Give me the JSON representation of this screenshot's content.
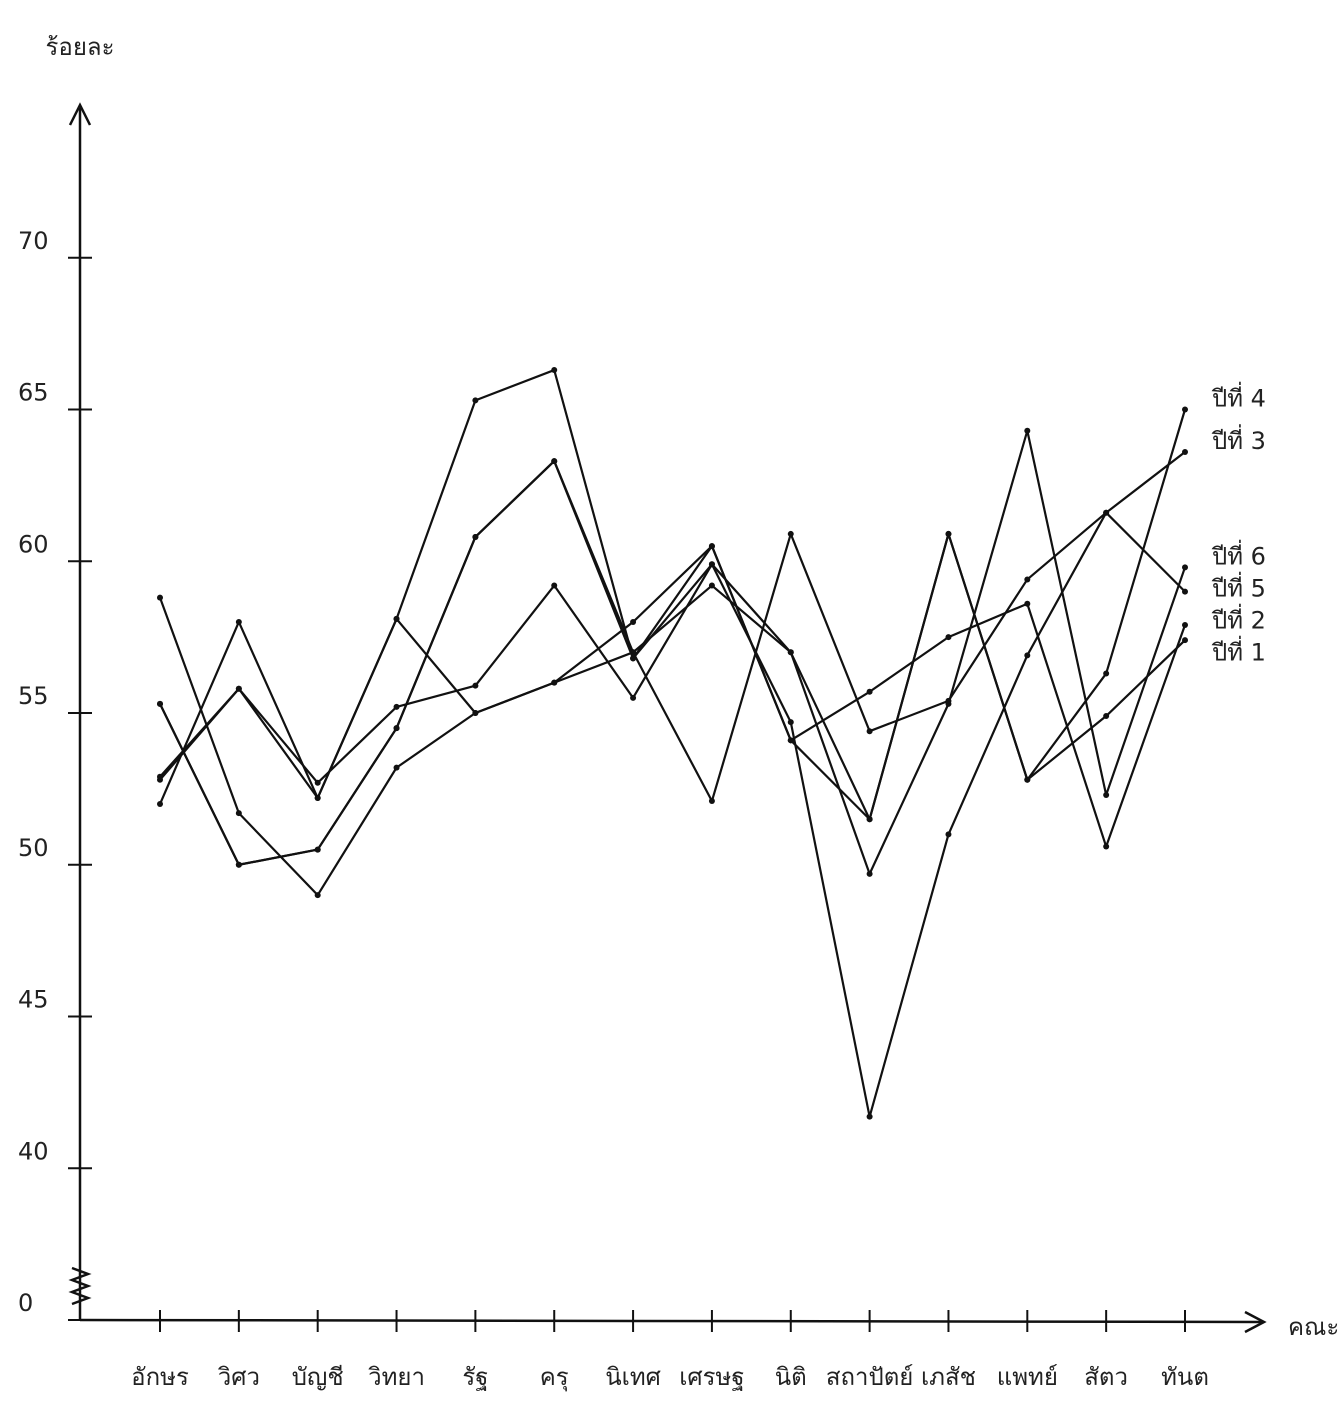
{
  "chart_data": {
    "type": "line",
    "y_label": "ร้อยละ",
    "x_label": "คณะ",
    "categories": [
      "อักษร",
      "วิศว",
      "บัญชี",
      "วิทยา",
      "รัฐ",
      "ครุ",
      "นิเทศ",
      "เศรษฐ",
      "นิติ",
      "สถาปัตย์",
      "เภสัช",
      "แพทย์",
      "สัตว",
      "ทันต"
    ],
    "series": [
      {
        "name": "ปีที่ 4",
        "color": "#111111",
        "values": [
          52.0,
          58.0,
          52.2,
          58.1,
          65.3,
          66.3,
          56.8,
          60.5,
          54.1,
          51.5,
          60.9,
          52.8,
          56.3,
          65.0
        ]
      },
      {
        "name": "ปีที่ 3",
        "color": "#111111",
        "values": [
          52.8,
          55.8,
          52.7,
          55.2,
          55.9,
          59.2,
          55.5,
          59.9,
          54.7,
          41.7,
          51.0,
          56.9,
          61.6,
          63.6
        ]
      },
      {
        "name": "ปีที่ 6",
        "color": "#111111",
        "values": [
          55.3,
          50.0,
          50.5,
          54.5,
          60.8,
          63.3,
          57.0,
          59.2,
          57.0,
          49.7,
          55.3,
          64.3,
          52.3,
          59.8
        ]
      },
      {
        "name": "ปีที่ 5",
        "color": "#111111",
        "values": [
          58.8,
          51.7,
          49.0,
          53.2,
          55.0,
          56.0,
          57.0,
          52.1,
          60.9,
          54.4,
          55.4,
          59.4,
          61.6,
          59.0
        ]
      },
      {
        "name": "ปีที่ 2",
        "color": "#111111",
        "values": [
          52.9,
          55.8,
          52.2,
          58.1,
          55.0,
          56.0,
          58.0,
          60.5,
          54.1,
          55.7,
          57.5,
          58.6,
          50.6,
          57.9
        ]
      },
      {
        "name": "ปีที่ 1",
        "color": "#111111",
        "values": [
          55.3,
          50.0,
          50.5,
          54.5,
          60.8,
          63.3,
          56.8,
          59.9,
          57.0,
          51.5,
          60.9,
          52.8,
          54.9,
          57.4
        ]
      }
    ],
    "ylim": [
      35,
      75
    ],
    "yticks": [
      0,
      40,
      45,
      50,
      55,
      60,
      65,
      70
    ],
    "axis_break": true,
    "grid": false
  }
}
